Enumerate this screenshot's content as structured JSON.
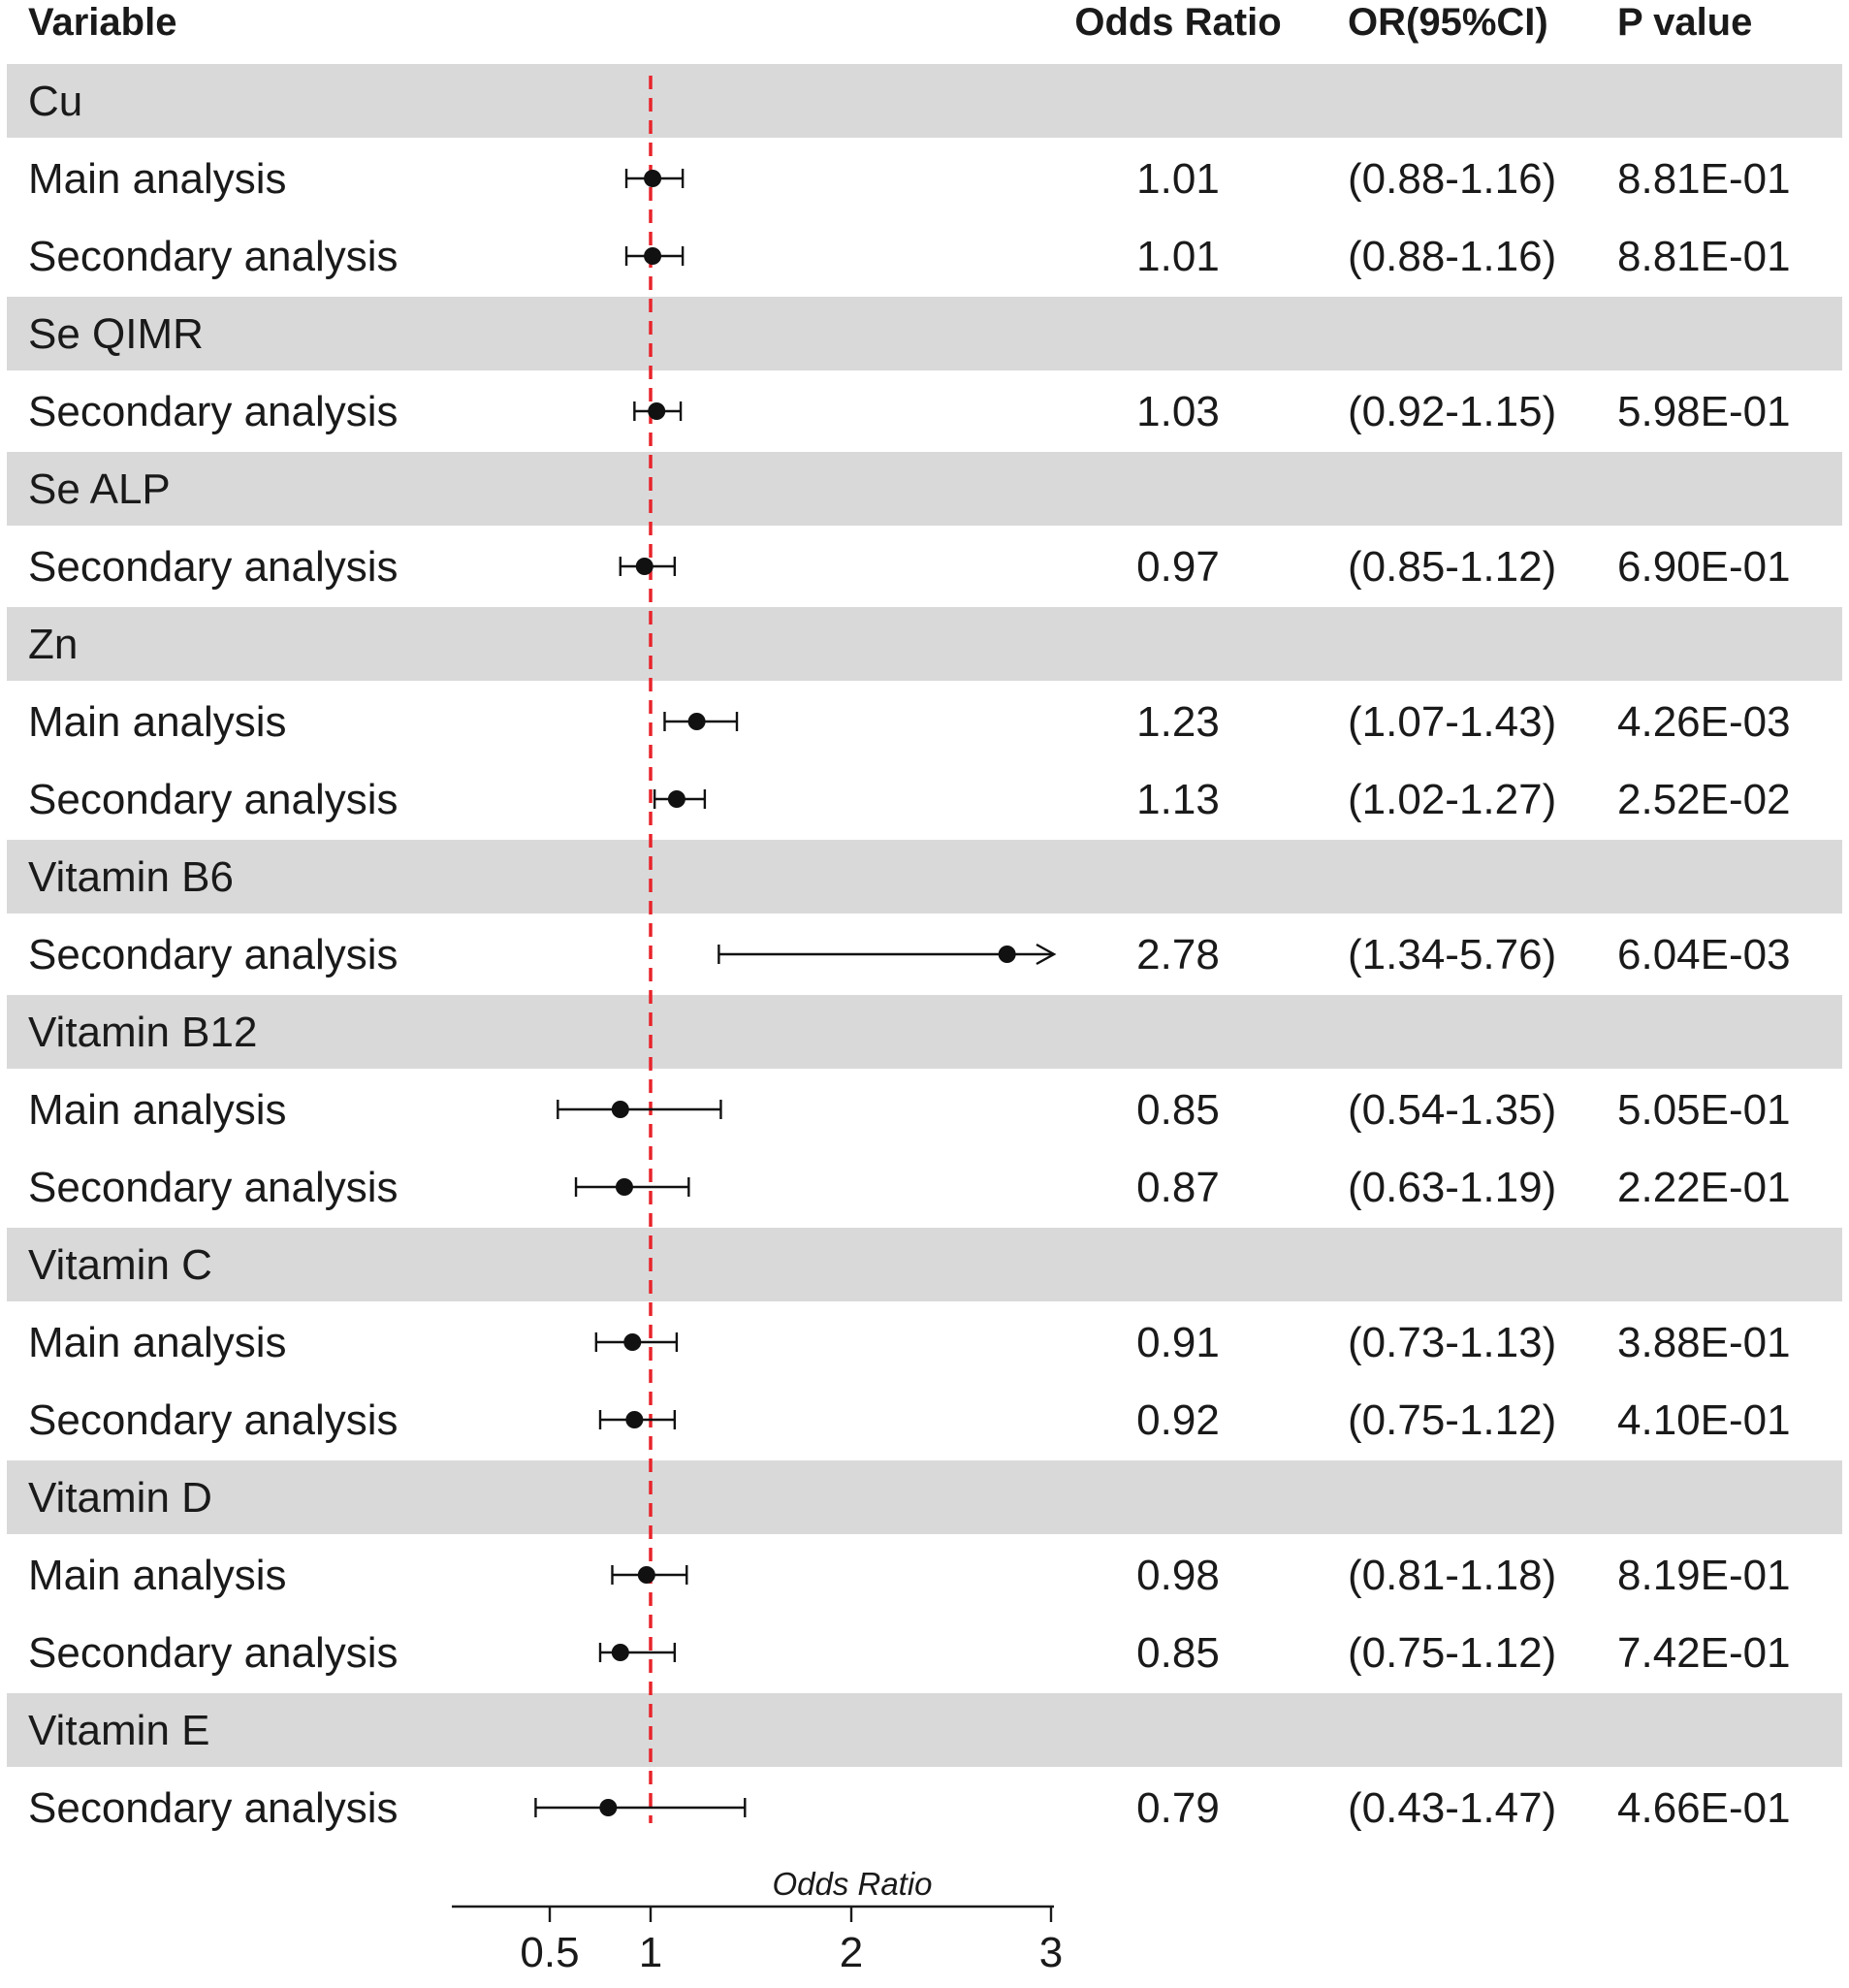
{
  "chart_data": {
    "type": "forest",
    "columns": {
      "variable": "Variable",
      "odds_ratio": "Odds Ratio",
      "ci": "OR(95%CI)",
      "p_value": "P value"
    },
    "groups": [
      {
        "name": "Cu",
        "rows": [
          {
            "label": "Main analysis",
            "or": 1.01,
            "lower": 0.88,
            "upper": 1.16,
            "or_text": "1.01",
            "ci_text": "(0.88-1.16)",
            "p_text": "8.81E-01"
          },
          {
            "label": "Secondary analysis",
            "or": 1.01,
            "lower": 0.88,
            "upper": 1.16,
            "or_text": "1.01",
            "ci_text": "(0.88-1.16)",
            "p_text": "8.81E-01"
          }
        ]
      },
      {
        "name": "Se QIMR",
        "rows": [
          {
            "label": "Secondary analysis",
            "or": 1.03,
            "lower": 0.92,
            "upper": 1.15,
            "or_text": "1.03",
            "ci_text": "(0.92-1.15)",
            "p_text": "5.98E-01"
          }
        ]
      },
      {
        "name": "Se ALP",
        "rows": [
          {
            "label": "Secondary analysis",
            "or": 0.97,
            "lower": 0.85,
            "upper": 1.12,
            "or_text": "0.97",
            "ci_text": "(0.85-1.12)",
            "p_text": "6.90E-01"
          }
        ]
      },
      {
        "name": "Zn",
        "rows": [
          {
            "label": "Main analysis",
            "or": 1.23,
            "lower": 1.07,
            "upper": 1.43,
            "or_text": "1.23",
            "ci_text": "(1.07-1.43)",
            "p_text": "4.26E-03"
          },
          {
            "label": "Secondary analysis",
            "or": 1.13,
            "lower": 1.02,
            "upper": 1.27,
            "or_text": "1.13",
            "ci_text": "(1.02-1.27)",
            "p_text": "2.52E-02"
          }
        ]
      },
      {
        "name": "Vitamin B6",
        "rows": [
          {
            "label": "Secondary analysis",
            "or": 2.78,
            "lower": 1.34,
            "upper": 5.76,
            "or_text": "2.78",
            "ci_text": "(1.34-5.76)",
            "p_text": "6.04E-03"
          }
        ]
      },
      {
        "name": "Vitamin B12",
        "rows": [
          {
            "label": "Main analysis",
            "or": 0.85,
            "lower": 0.54,
            "upper": 1.35,
            "or_text": "0.85",
            "ci_text": "(0.54-1.35)",
            "p_text": "5.05E-01"
          },
          {
            "label": "Secondary analysis",
            "or": 0.87,
            "lower": 0.63,
            "upper": 1.19,
            "or_text": "0.87",
            "ci_text": "(0.63-1.19)",
            "p_text": "2.22E-01"
          }
        ]
      },
      {
        "name": "Vitamin C",
        "rows": [
          {
            "label": "Main analysis",
            "or": 0.91,
            "lower": 0.73,
            "upper": 1.13,
            "or_text": "0.91",
            "ci_text": "(0.73-1.13)",
            "p_text": "3.88E-01"
          },
          {
            "label": "Secondary analysis",
            "or": 0.92,
            "lower": 0.75,
            "upper": 1.12,
            "or_text": "0.92",
            "ci_text": "(0.75-1.12)",
            "p_text": "4.10E-01"
          }
        ]
      },
      {
        "name": "Vitamin D",
        "rows": [
          {
            "label": "Main analysis",
            "or": 0.98,
            "lower": 0.81,
            "upper": 1.18,
            "or_text": "0.98",
            "ci_text": "(0.81-1.18)",
            "p_text": "8.19E-01"
          },
          {
            "label": "Secondary analysis",
            "or": 0.85,
            "lower": 0.75,
            "upper": 1.12,
            "or_text": "0.85",
            "ci_text": "(0.75-1.12)",
            "p_text": "7.42E-01"
          }
        ]
      },
      {
        "name": "Vitamin E",
        "rows": [
          {
            "label": "Secondary analysis",
            "or": 0.79,
            "lower": 0.43,
            "upper": 1.47,
            "or_text": "0.79",
            "ci_text": "(0.43-1.47)",
            "p_text": "4.66E-01"
          }
        ]
      }
    ],
    "x_axis": {
      "label": "Odds Ratio",
      "ticks": [
        0.5,
        1,
        2,
        3
      ],
      "tick_labels": [
        "0.5",
        "1",
        "2",
        "3"
      ],
      "range": [
        0.3,
        3
      ]
    },
    "reference_line": 1,
    "colors": {
      "group_band": "#d9d9d9",
      "reference_line": "#e8242b",
      "marker": "#111111",
      "text": "#1a1a1a"
    }
  }
}
